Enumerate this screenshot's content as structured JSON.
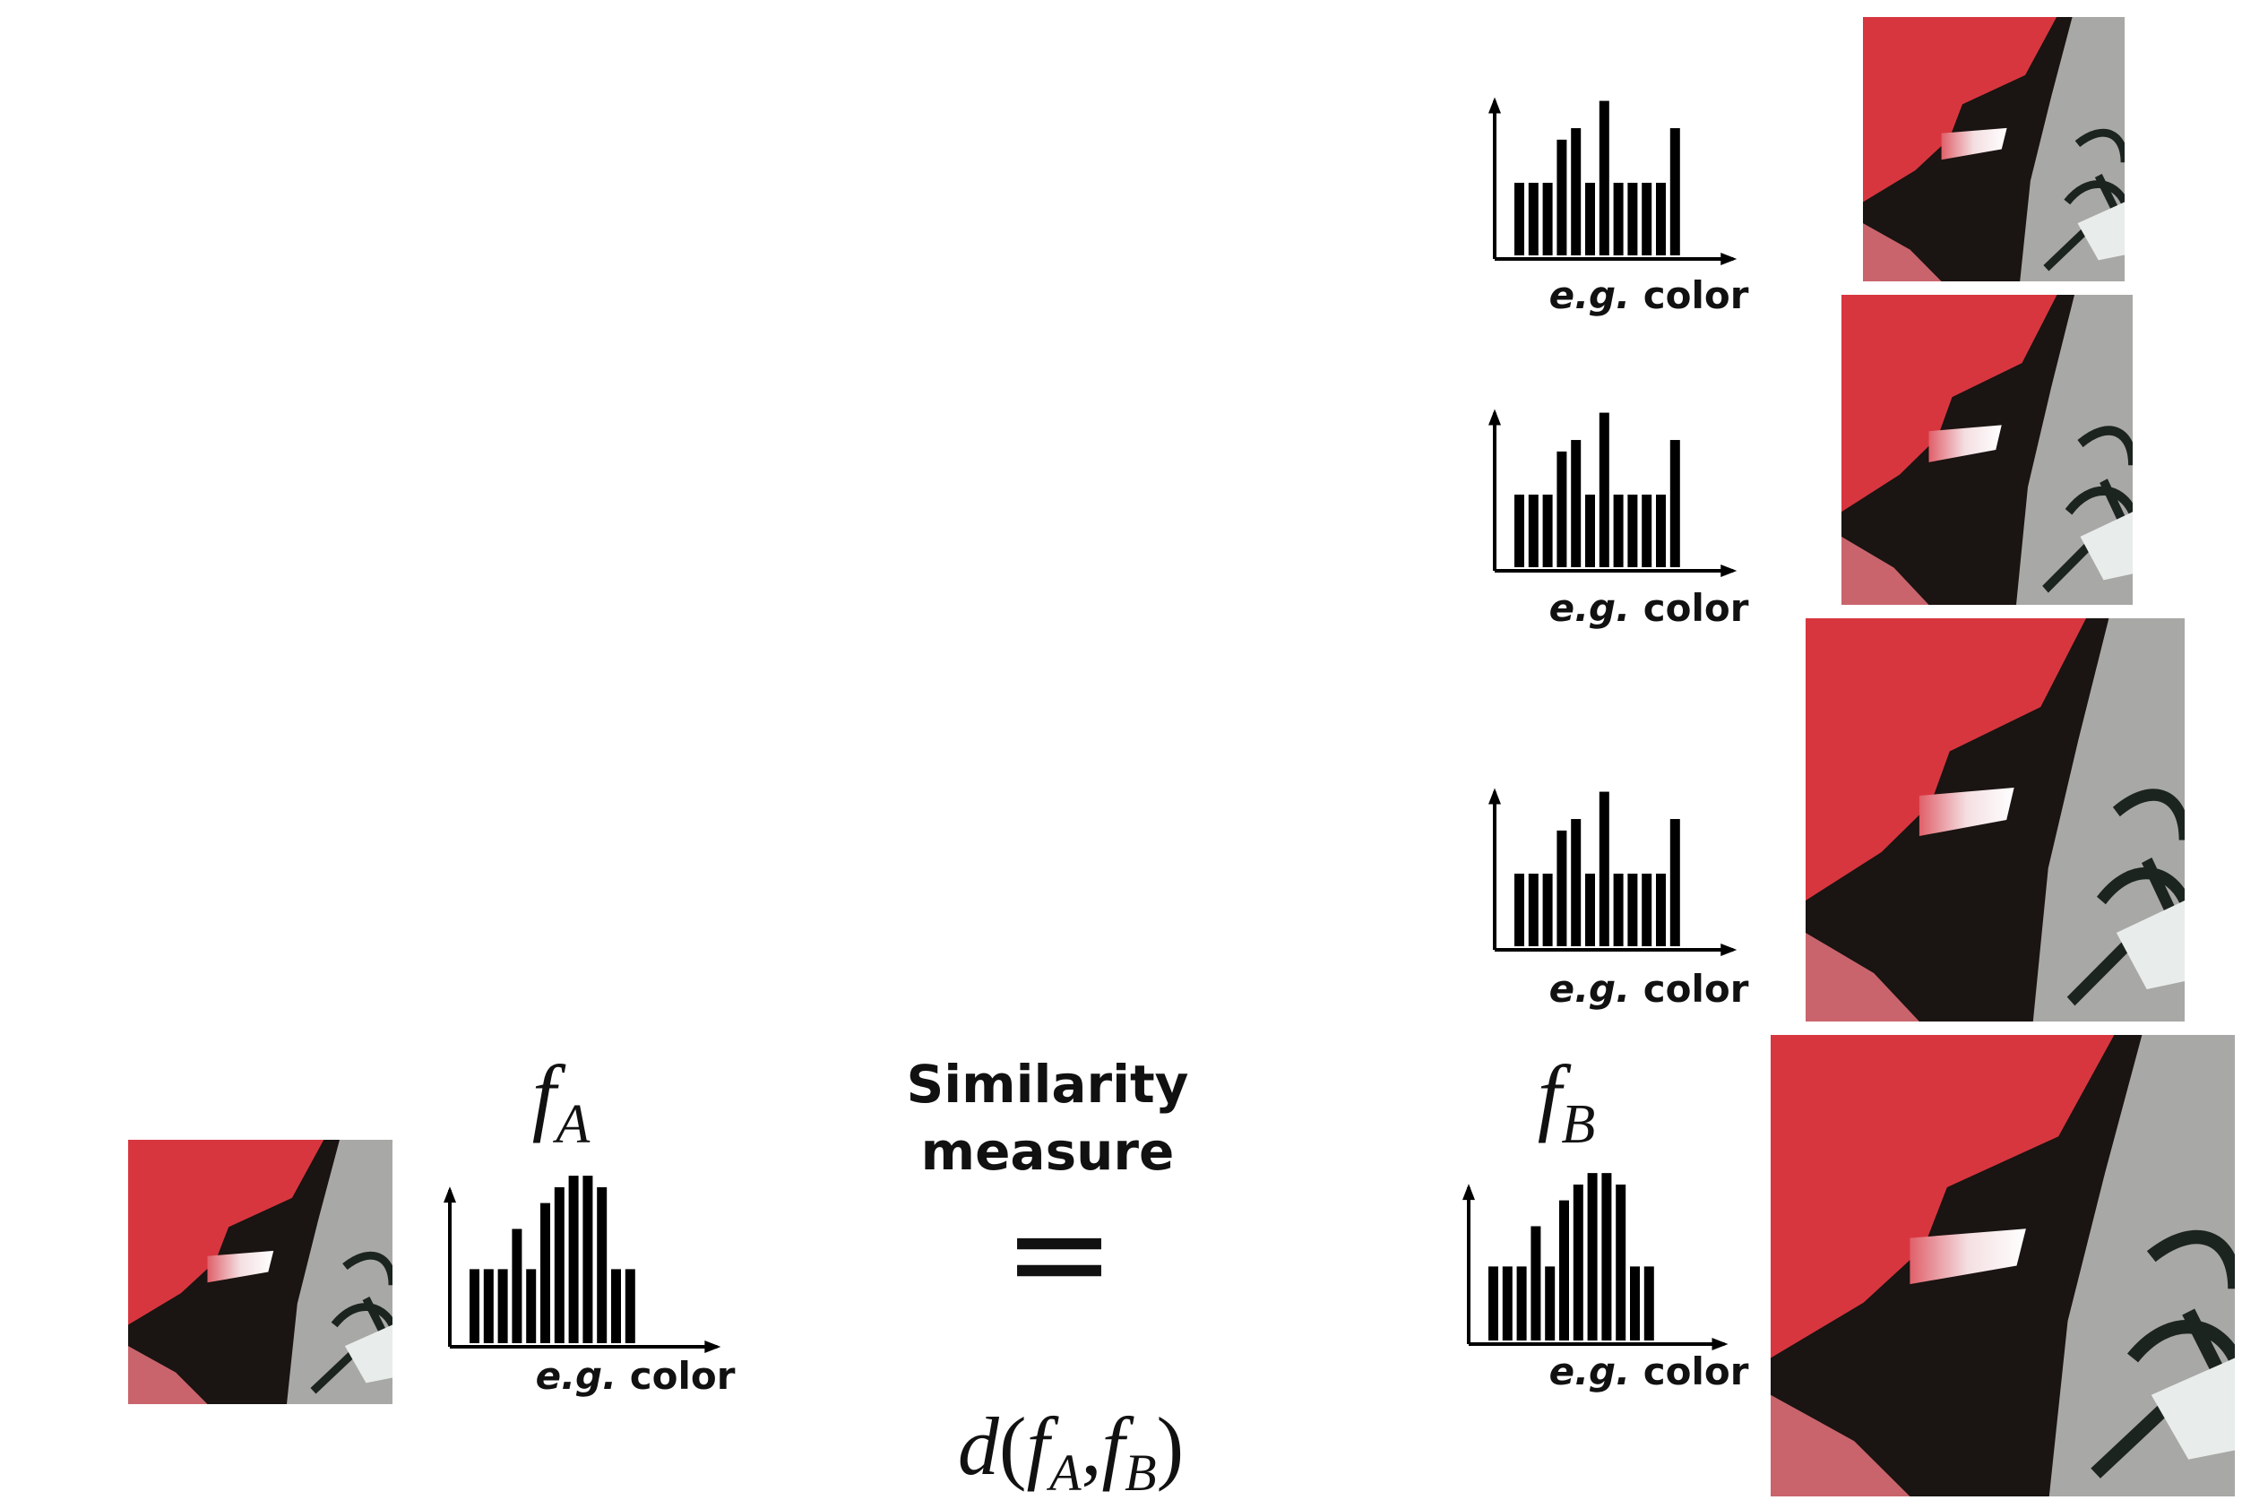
{
  "query": {
    "feature": {
      "symbol": "f",
      "subscript": "A"
    },
    "histogram_label": {
      "emphasis": "e.g.",
      "text": "color"
    }
  },
  "comparison": {
    "title_lines": [
      "Similarity",
      "measure"
    ],
    "equals": "=",
    "formula": {
      "function": "d",
      "open": "(",
      "arg1": {
        "symbol": "f",
        "subscript": "A"
      },
      "separator": ",",
      "arg2": {
        "symbol": "f",
        "subscript": "B"
      },
      "close": ")"
    }
  },
  "candidates": {
    "feature": {
      "symbol": "f",
      "subscript": "B"
    },
    "histogram_labels": [
      {
        "emphasis": "e.g.",
        "text": "color"
      },
      {
        "emphasis": "e.g.",
        "text": "color"
      },
      {
        "emphasis": "e.g.",
        "text": "color"
      },
      {
        "emphasis": "e.g.",
        "text": "color"
      }
    ]
  }
}
